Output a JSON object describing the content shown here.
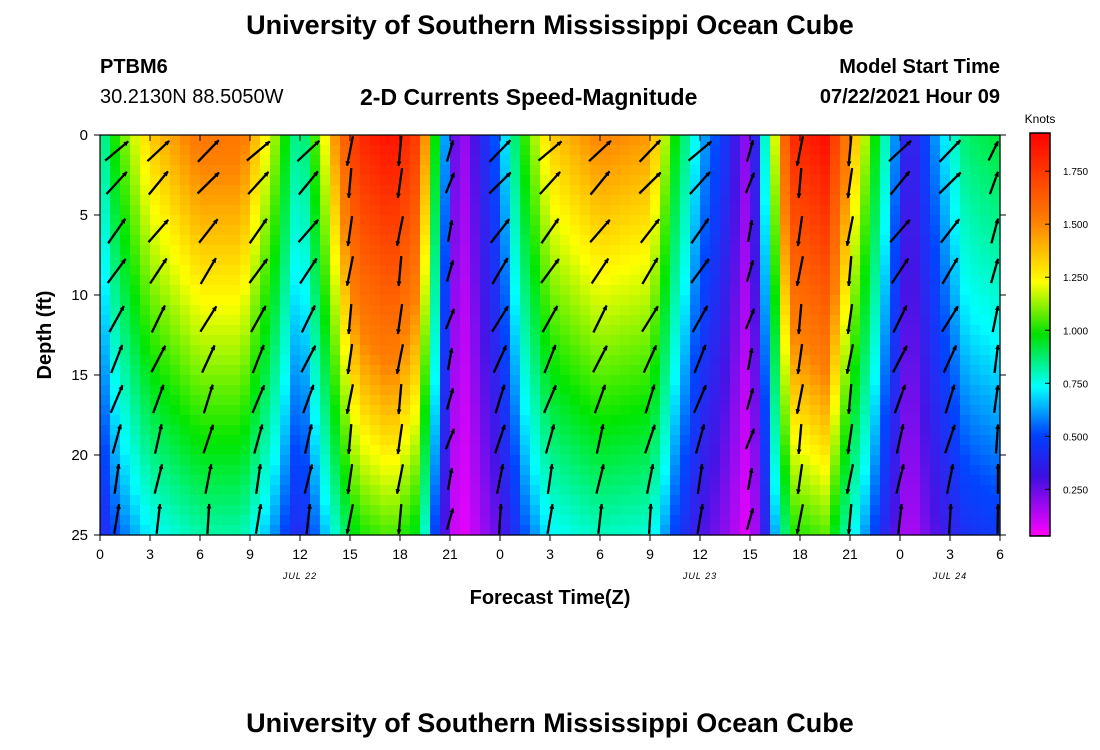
{
  "header": {
    "title": "University of Southern Mississippi Ocean Cube",
    "station": "PTBM6",
    "coords": "30.2130N  88.5050W",
    "model_start_label": "Model Start Time",
    "model_start_value": "07/22/2021 Hour 09"
  },
  "footer": {
    "title": "University of Southern Mississippi Ocean Cube"
  },
  "chart_data": {
    "type": "heatmap",
    "title": "2-D Currents Speed-Magnitude",
    "xlabel": "Forecast Time(Z)",
    "ylabel": "Depth (ft)",
    "x_range_hours": [
      0,
      54
    ],
    "ylim": [
      0,
      25
    ],
    "y_inverted": true,
    "x_ticks": [
      {
        "h": 0,
        "label": "0"
      },
      {
        "h": 3,
        "label": "3"
      },
      {
        "h": 6,
        "label": "6"
      },
      {
        "h": 9,
        "label": "9"
      },
      {
        "h": 12,
        "label": "12"
      },
      {
        "h": 15,
        "label": "15"
      },
      {
        "h": 18,
        "label": "18"
      },
      {
        "h": 21,
        "label": "21"
      },
      {
        "h": 24,
        "label": "0"
      },
      {
        "h": 27,
        "label": "3"
      },
      {
        "h": 30,
        "label": "6"
      },
      {
        "h": 33,
        "label": "9"
      },
      {
        "h": 36,
        "label": "12"
      },
      {
        "h": 39,
        "label": "15"
      },
      {
        "h": 42,
        "label": "18"
      },
      {
        "h": 45,
        "label": "21"
      },
      {
        "h": 48,
        "label": "0"
      },
      {
        "h": 51,
        "label": "3"
      },
      {
        "h": 54,
        "label": "6"
      }
    ],
    "y_ticks": [
      0,
      5,
      10,
      15,
      20,
      25
    ],
    "date_labels": [
      {
        "h": 12,
        "label": "JUL 22"
      },
      {
        "h": 36,
        "label": "JUL 23"
      },
      {
        "h": 51,
        "label": "JUL 24"
      }
    ],
    "colorbar": {
      "unit": "Knots",
      "min": 0.03,
      "max": 1.93,
      "ticks": [
        0.25,
        0.5,
        0.75,
        1.0,
        1.25,
        1.5,
        1.75
      ],
      "tick_labels": [
        "0.250",
        "0.500",
        "0.750",
        "1.000",
        "1.250",
        "1.500",
        "1.750"
      ]
    },
    "time_profile": [
      {
        "h": 0,
        "speed": 0.55
      },
      {
        "h": 1,
        "speed": 0.8
      },
      {
        "h": 3,
        "speed": 1.1
      },
      {
        "h": 6,
        "speed": 1.3
      },
      {
        "h": 8.5,
        "speed": 1.3
      },
      {
        "h": 10.5,
        "speed": 0.9
      },
      {
        "h": 12,
        "speed": 0.55
      },
      {
        "h": 13.5,
        "speed": 1.0
      },
      {
        "h": 15.5,
        "speed": 1.7
      },
      {
        "h": 17.5,
        "speed": 1.85
      },
      {
        "h": 19,
        "speed": 1.6
      },
      {
        "h": 20.3,
        "speed": 0.6
      },
      {
        "h": 21.5,
        "speed": 0.08
      },
      {
        "h": 22.5,
        "speed": 0.2
      },
      {
        "h": 24,
        "speed": 0.4
      },
      {
        "h": 25.5,
        "speed": 0.8
      },
      {
        "h": 27,
        "speed": 1.1
      },
      {
        "h": 30,
        "speed": 1.25
      },
      {
        "h": 33,
        "speed": 1.2
      },
      {
        "h": 34.5,
        "speed": 0.75
      },
      {
        "h": 36,
        "speed": 0.45
      },
      {
        "h": 37.5,
        "speed": 0.3
      },
      {
        "h": 39,
        "speed": 0.1
      },
      {
        "h": 40,
        "speed": 0.6
      },
      {
        "h": 41.5,
        "speed": 1.7
      },
      {
        "h": 43.5,
        "speed": 1.85
      },
      {
        "h": 45,
        "speed": 1.2
      },
      {
        "h": 47,
        "speed": 0.6
      },
      {
        "h": 48.5,
        "speed": 0.2
      },
      {
        "h": 50,
        "speed": 0.4
      },
      {
        "h": 52,
        "speed": 0.65
      },
      {
        "h": 54,
        "speed": 0.7
      }
    ],
    "arrow_columns_h": [
      1,
      3.5,
      6.5,
      9.5,
      12.5,
      15,
      18,
      21,
      24,
      27,
      30,
      33,
      36,
      39,
      42,
      45,
      48,
      51,
      54
    ],
    "arrow_depths_ft": [
      1,
      3,
      6,
      8.5,
      11.5,
      14,
      16.5,
      19,
      21.5,
      24
    ],
    "depth_attenuation": 0.55
  }
}
